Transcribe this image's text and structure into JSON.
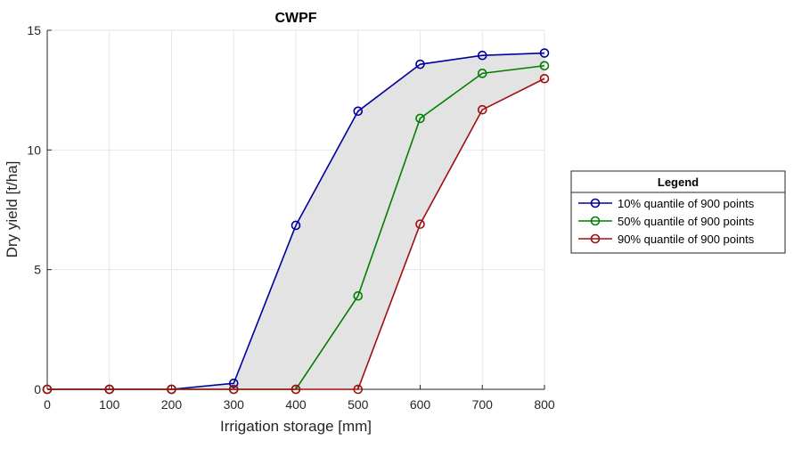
{
  "chart_data": {
    "type": "line",
    "title": "CWPF",
    "xlabel": "Irrigation storage [mm]",
    "ylabel": "Dry yield [t/ha]",
    "x": [
      0,
      100,
      200,
      300,
      400,
      500,
      600,
      700,
      800
    ],
    "xlim": [
      0,
      800
    ],
    "ylim": [
      0,
      15
    ],
    "xticks": [
      "0",
      "100",
      "200",
      "300",
      "400",
      "500",
      "600",
      "700",
      "800"
    ],
    "yticks": [
      "0",
      "5",
      "10",
      "15"
    ],
    "grid": true,
    "band_between": [
      "10% quantile of 900 points",
      "90% quantile of 900 points"
    ],
    "band_color": "#e3e3e3",
    "legend": {
      "title": "Legend",
      "placement": "outside-right"
    },
    "series": [
      {
        "name": "10% quantile of 900 points",
        "color": "#0000a0",
        "values": [
          0,
          0,
          0,
          0.25,
          6.85,
          11.62,
          13.58,
          13.95,
          14.05
        ]
      },
      {
        "name": "50% quantile of 900 points",
        "color": "#008000",
        "values": [
          0,
          0,
          0,
          0,
          0,
          3.9,
          11.32,
          13.2,
          13.52
        ]
      },
      {
        "name": "90% quantile of 900 points",
        "color": "#a01010",
        "values": [
          0,
          0,
          0,
          0,
          0,
          0,
          6.9,
          11.68,
          12.98
        ]
      }
    ]
  }
}
